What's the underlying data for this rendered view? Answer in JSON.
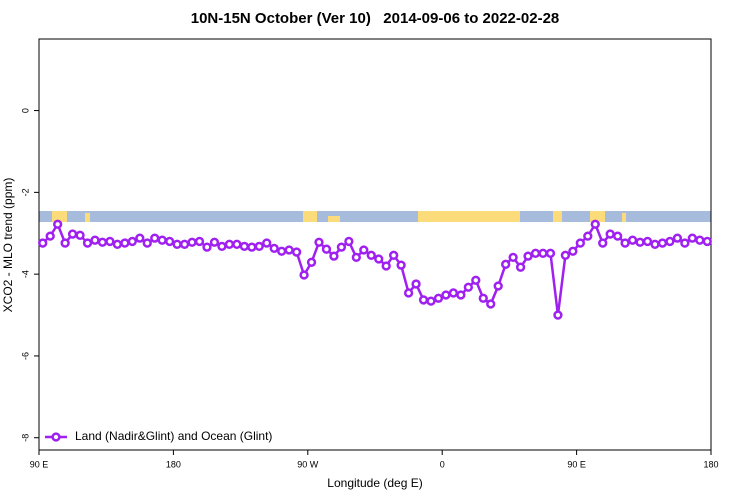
{
  "chart_data": {
    "type": "line",
    "title": "10N-15N October (Ver 10)   2014-09-06 to 2022-02-28",
    "x_label": "Longitude (deg E)",
    "y_label": "XCO2 - MLO trend (ppm)",
    "xlim": [
      90,
      540
    ],
    "xticks": [
      {
        "value": 90,
        "label": "90 E"
      },
      {
        "value": 180,
        "label": "180"
      },
      {
        "value": 270,
        "label": "90 W"
      },
      {
        "value": 360,
        "label": "0"
      },
      {
        "value": 450,
        "label": "90 E"
      },
      {
        "value": 540,
        "label": "180"
      }
    ],
    "ylim": [
      -8.3,
      1.75
    ],
    "yticks": [
      0,
      -2,
      -4,
      -6,
      -8
    ],
    "legend_position": "bottom-left",
    "x": [
      92.5,
      97.5,
      102.5,
      107.5,
      112.5,
      117.5,
      122.5,
      127.5,
      132.5,
      137.5,
      142.5,
      147.5,
      152.5,
      157.5,
      162.5,
      167.5,
      172.5,
      177.5,
      182.5,
      187.5,
      192.5,
      197.5,
      202.5,
      207.5,
      212.5,
      217.5,
      222.5,
      227.5,
      232.5,
      237.5,
      242.5,
      247.5,
      252.5,
      257.5,
      262.5,
      267.5,
      272.5,
      277.5,
      282.5,
      287.5,
      292.5,
      297.5,
      302.5,
      307.5,
      312.5,
      317.5,
      322.5,
      327.5,
      332.5,
      337.5,
      342.5,
      347.5,
      352.5,
      357.5,
      362.5,
      367.5,
      372.5,
      377.5,
      382.5,
      387.5,
      392.5,
      397.5,
      402.5,
      407.5,
      412.5,
      417.5,
      422.5,
      427.5,
      432.5,
      437.5,
      442.5,
      447.5,
      452.5,
      457.5,
      462.5,
      467.5,
      472.5,
      477.5,
      482.5,
      487.5,
      492.5,
      497.5,
      502.5,
      507.5,
      512.5,
      517.5,
      522.5,
      527.5,
      532.5,
      537.5
    ],
    "series": [
      {
        "name": "Land (Nadir&Glint) and Ocean (Glint)",
        "color": "#a020f0",
        "values": [
          -3.24,
          -3.07,
          -2.78,
          -3.24,
          -3.02,
          -3.05,
          -3.24,
          -3.17,
          -3.22,
          -3.2,
          -3.27,
          -3.24,
          -3.2,
          -3.12,
          -3.24,
          -3.12,
          -3.17,
          -3.2,
          -3.27,
          -3.27,
          -3.22,
          -3.2,
          -3.34,
          -3.22,
          -3.32,
          -3.27,
          -3.27,
          -3.32,
          -3.34,
          -3.32,
          -3.24,
          -3.37,
          -3.44,
          -3.41,
          -3.46,
          -4.02,
          -3.71,
          -3.22,
          -3.39,
          -3.56,
          -3.34,
          -3.2,
          -3.59,
          -3.41,
          -3.54,
          -3.63,
          -3.8,
          -3.54,
          -3.78,
          -4.46,
          -4.24,
          -4.63,
          -4.66,
          -4.59,
          -4.51,
          -4.46,
          -4.51,
          -4.32,
          -4.15,
          -4.59,
          -4.73,
          -4.29,
          -3.76,
          -3.59,
          -3.83,
          -3.56,
          -3.49,
          -3.49,
          -3.49,
          -5.0,
          -3.54,
          -3.44,
          -3.24,
          -3.07,
          -2.78,
          -3.24,
          -3.02,
          -3.07,
          -3.24,
          -3.17,
          -3.22,
          -3.2,
          -3.27,
          -3.24,
          -3.2,
          -3.12,
          -3.24,
          -3.12,
          -3.17,
          -3.2
        ]
      }
    ]
  }
}
